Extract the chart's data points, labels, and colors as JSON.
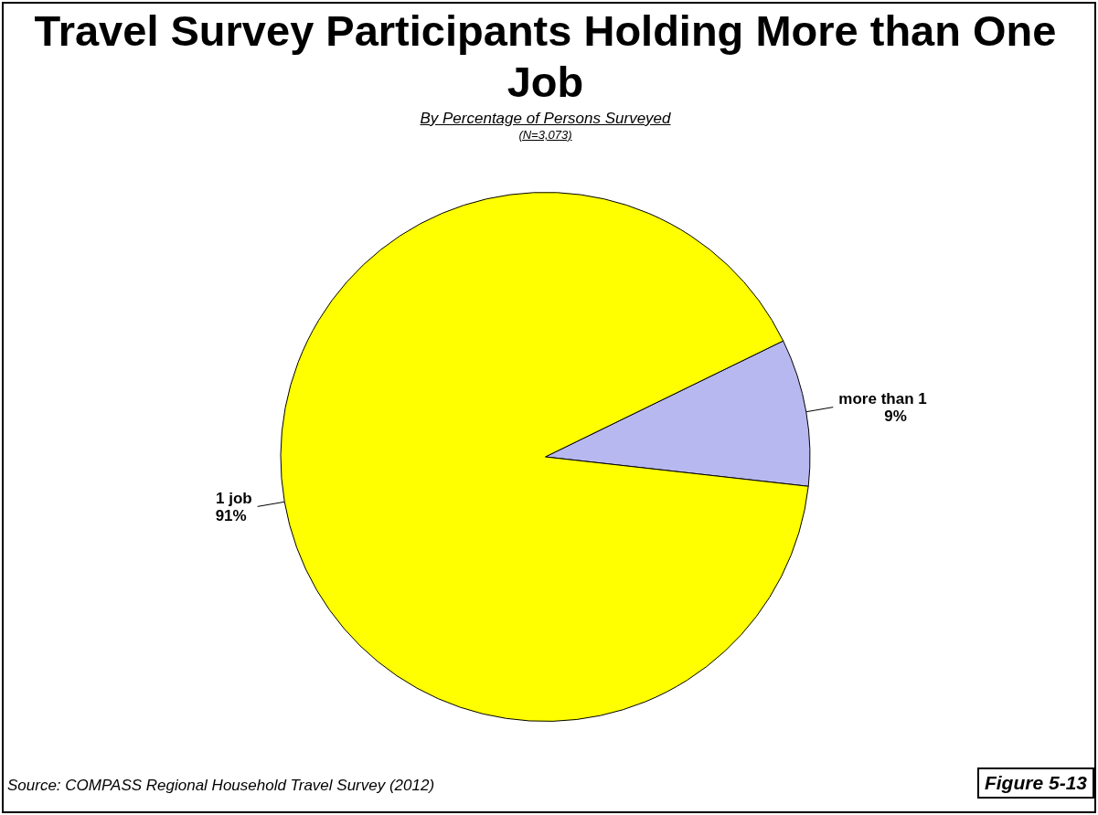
{
  "chart_data": {
    "type": "pie",
    "title": "Travel Survey Participants Holding More than One Job",
    "subtitle": "By Percentage of Persons Surveyed",
    "categories": [
      "more than 1",
      "1 job"
    ],
    "values": [
      9,
      91
    ],
    "value_labels": [
      "9%",
      "91%"
    ],
    "colors": [
      "#b8b8f0",
      "#ffff00"
    ],
    "legend": false,
    "annotations": [
      "(N=3,073)",
      "Source:  COMPASS Regional Household Travel Survey (2012)",
      "Figure 5-13"
    ]
  }
}
